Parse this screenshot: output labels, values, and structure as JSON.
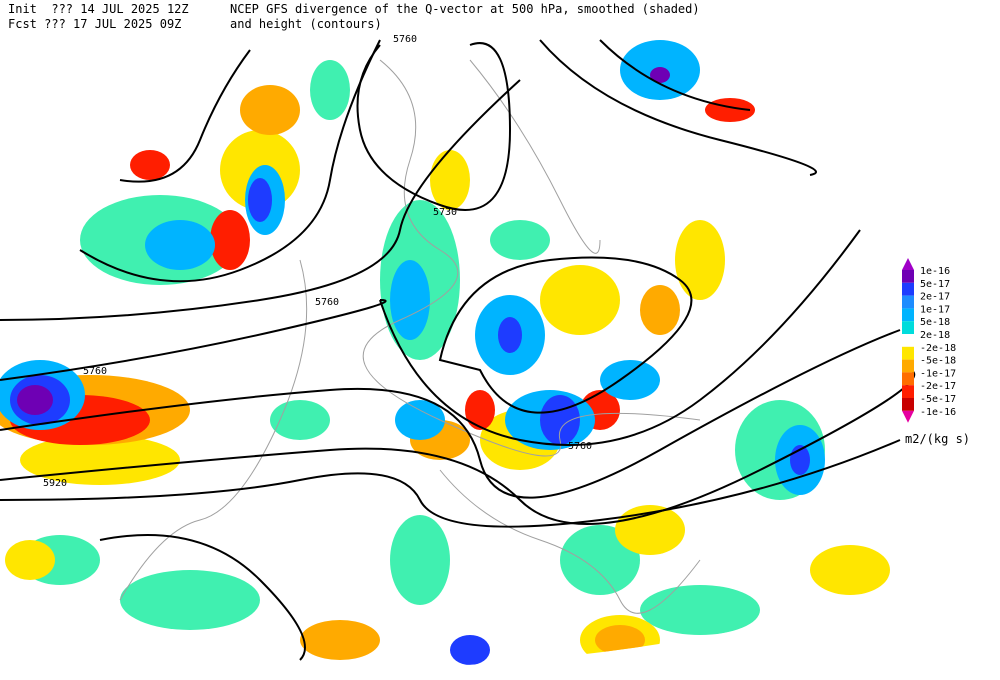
{
  "header": {
    "init": "Init  ??? 14 JUL 2025 12Z",
    "title": "NCEP GFS divergence of the Q-vector at 500 hPa, smoothed (shaded)",
    "fcst": "Fcst ??? 17 JUL 2025 09Z",
    "subtitle": "and height (contours)"
  },
  "contour_labels": [
    "5760",
    "5730",
    "5760",
    "5760",
    "5760",
    "5920"
  ],
  "colorbar": {
    "levels": [
      "1e-16",
      "5e-17",
      "2e-17",
      "1e-17",
      "5e-18",
      "2e-18",
      "-2e-18",
      "-5e-18",
      "-1e-17",
      "-2e-17",
      "-5e-17",
      "-1e-16"
    ],
    "colors": [
      "#a000c8",
      "#6e00b4",
      "#1e3cff",
      "#1e8cff",
      "#00b4ff",
      "#00dcdc",
      "#ffffff",
      "#ffe600",
      "#ffaa00",
      "#ff6e00",
      "#ff1e00",
      "#c80000",
      "#e600a0"
    ],
    "units": "m2/(kg s)"
  }
}
